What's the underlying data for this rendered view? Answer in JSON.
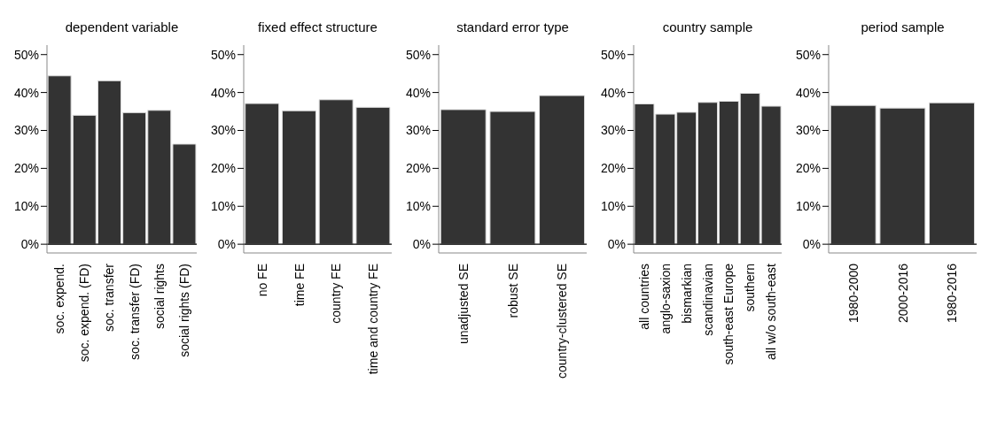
{
  "chart_data": [
    {
      "type": "bar",
      "title": "dependent variable",
      "categories": [
        "soc. expend.",
        "soc. expend. (FD)",
        "soc. transfer",
        "soc. transfer (FD)",
        "social rights",
        "social rights (FD)"
      ],
      "values": [
        44.4,
        34.0,
        43.1,
        34.7,
        35.3,
        26.4
      ],
      "color": "#333333",
      "ylim": [
        -2.3,
        52.5
      ],
      "yticks": [
        {
          "value": 0,
          "label": "0%"
        },
        {
          "value": 10,
          "label": "10%"
        },
        {
          "value": 20,
          "label": "20%"
        },
        {
          "value": 30,
          "label": "30%"
        },
        {
          "value": 40,
          "label": "40%"
        },
        {
          "value": 50,
          "label": "50%"
        }
      ],
      "grid": false,
      "ref_lines": [
        {
          "axis": "y",
          "value": 0,
          "label": null
        }
      ]
    },
    {
      "type": "bar",
      "title": "fixed effect structure",
      "categories": [
        "no FE",
        "time FE",
        "country FE",
        "time and country FE"
      ],
      "values": [
        37.1,
        35.2,
        38.1,
        36.1
      ],
      "color": "#333333",
      "ylim": [
        -2.3,
        52.5
      ],
      "yticks": [
        {
          "value": 0,
          "label": "0%"
        },
        {
          "value": 10,
          "label": "10%"
        },
        {
          "value": 20,
          "label": "20%"
        },
        {
          "value": 30,
          "label": "30%"
        },
        {
          "value": 40,
          "label": "40%"
        },
        {
          "value": 50,
          "label": "50%"
        }
      ],
      "grid": false,
      "ref_lines": [
        {
          "axis": "y",
          "value": 0,
          "label": null
        }
      ]
    },
    {
      "type": "bar",
      "title": "standard error type",
      "categories": [
        "unadjusted SE",
        "robust SE",
        "country-clustered SE"
      ],
      "values": [
        35.5,
        35.0,
        39.2
      ],
      "color": "#333333",
      "ylim": [
        -2.3,
        52.5
      ],
      "yticks": [
        {
          "value": 0,
          "label": "0%"
        },
        {
          "value": 10,
          "label": "10%"
        },
        {
          "value": 20,
          "label": "20%"
        },
        {
          "value": 30,
          "label": "30%"
        },
        {
          "value": 40,
          "label": "40%"
        },
        {
          "value": 50,
          "label": "50%"
        }
      ],
      "grid": false,
      "ref_lines": [
        {
          "axis": "y",
          "value": 0,
          "label": null
        }
      ]
    },
    {
      "type": "bar",
      "title": "country sample",
      "categories": [
        "all countries",
        "anglo-saxion",
        "bismarkian",
        "scandinavian",
        "south-east Europe",
        "southern",
        "all w/o south-east"
      ],
      "values": [
        37.0,
        34.3,
        34.8,
        37.4,
        37.7,
        39.8,
        36.4
      ],
      "color": "#333333",
      "ylim": [
        -2.3,
        52.5
      ],
      "yticks": [
        {
          "value": 0,
          "label": "0%"
        },
        {
          "value": 10,
          "label": "10%"
        },
        {
          "value": 20,
          "label": "20%"
        },
        {
          "value": 30,
          "label": "30%"
        },
        {
          "value": 40,
          "label": "40%"
        },
        {
          "value": 50,
          "label": "50%"
        }
      ],
      "grid": false,
      "ref_lines": [
        {
          "axis": "y",
          "value": 0,
          "label": null
        }
      ]
    },
    {
      "type": "bar",
      "title": "period sample",
      "categories": [
        "1980-2000",
        "2000-2016",
        "1980-2016"
      ],
      "values": [
        36.6,
        35.9,
        37.3
      ],
      "color": "#333333",
      "ylim": [
        -2.3,
        52.5
      ],
      "yticks": [
        {
          "value": 0,
          "label": "0%"
        },
        {
          "value": 10,
          "label": "10%"
        },
        {
          "value": 20,
          "label": "20%"
        },
        {
          "value": 30,
          "label": "30%"
        },
        {
          "value": 40,
          "label": "40%"
        },
        {
          "value": 50,
          "label": "50%"
        }
      ],
      "grid": false,
      "ref_lines": [
        {
          "axis": "y",
          "value": 0,
          "label": null
        }
      ]
    }
  ]
}
